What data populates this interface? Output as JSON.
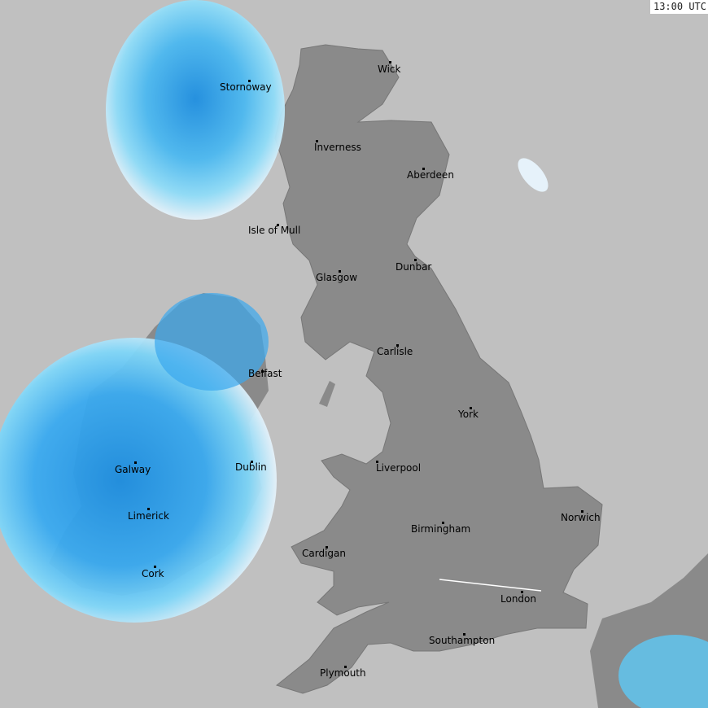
{
  "timestamp": "13:00 UTC",
  "colors": {
    "sea": "#c0c0c0",
    "land": "#8a8a8a",
    "rain_light": "#e6f2fa",
    "rain_mid": "#5cc8f5",
    "rain_heavy": "#1e8ee0",
    "rain_intense": "#1a5fd0"
  },
  "cities": [
    {
      "name": "Wick"
    },
    {
      "name": "Stornoway"
    },
    {
      "name": "Inverness"
    },
    {
      "name": "Aberdeen"
    },
    {
      "name": "Isle of Mull"
    },
    {
      "name": "Glasgow"
    },
    {
      "name": "Dunbar"
    },
    {
      "name": "Carlisle"
    },
    {
      "name": "Belfast"
    },
    {
      "name": "York"
    },
    {
      "name": "Galway"
    },
    {
      "name": "Dublin"
    },
    {
      "name": "Liverpool"
    },
    {
      "name": "Limerick"
    },
    {
      "name": "Norwich"
    },
    {
      "name": "Birmingham"
    },
    {
      "name": "Cardigan"
    },
    {
      "name": "Cork"
    },
    {
      "name": "London"
    },
    {
      "name": "Southampton"
    },
    {
      "name": "Plymouth"
    }
  ]
}
